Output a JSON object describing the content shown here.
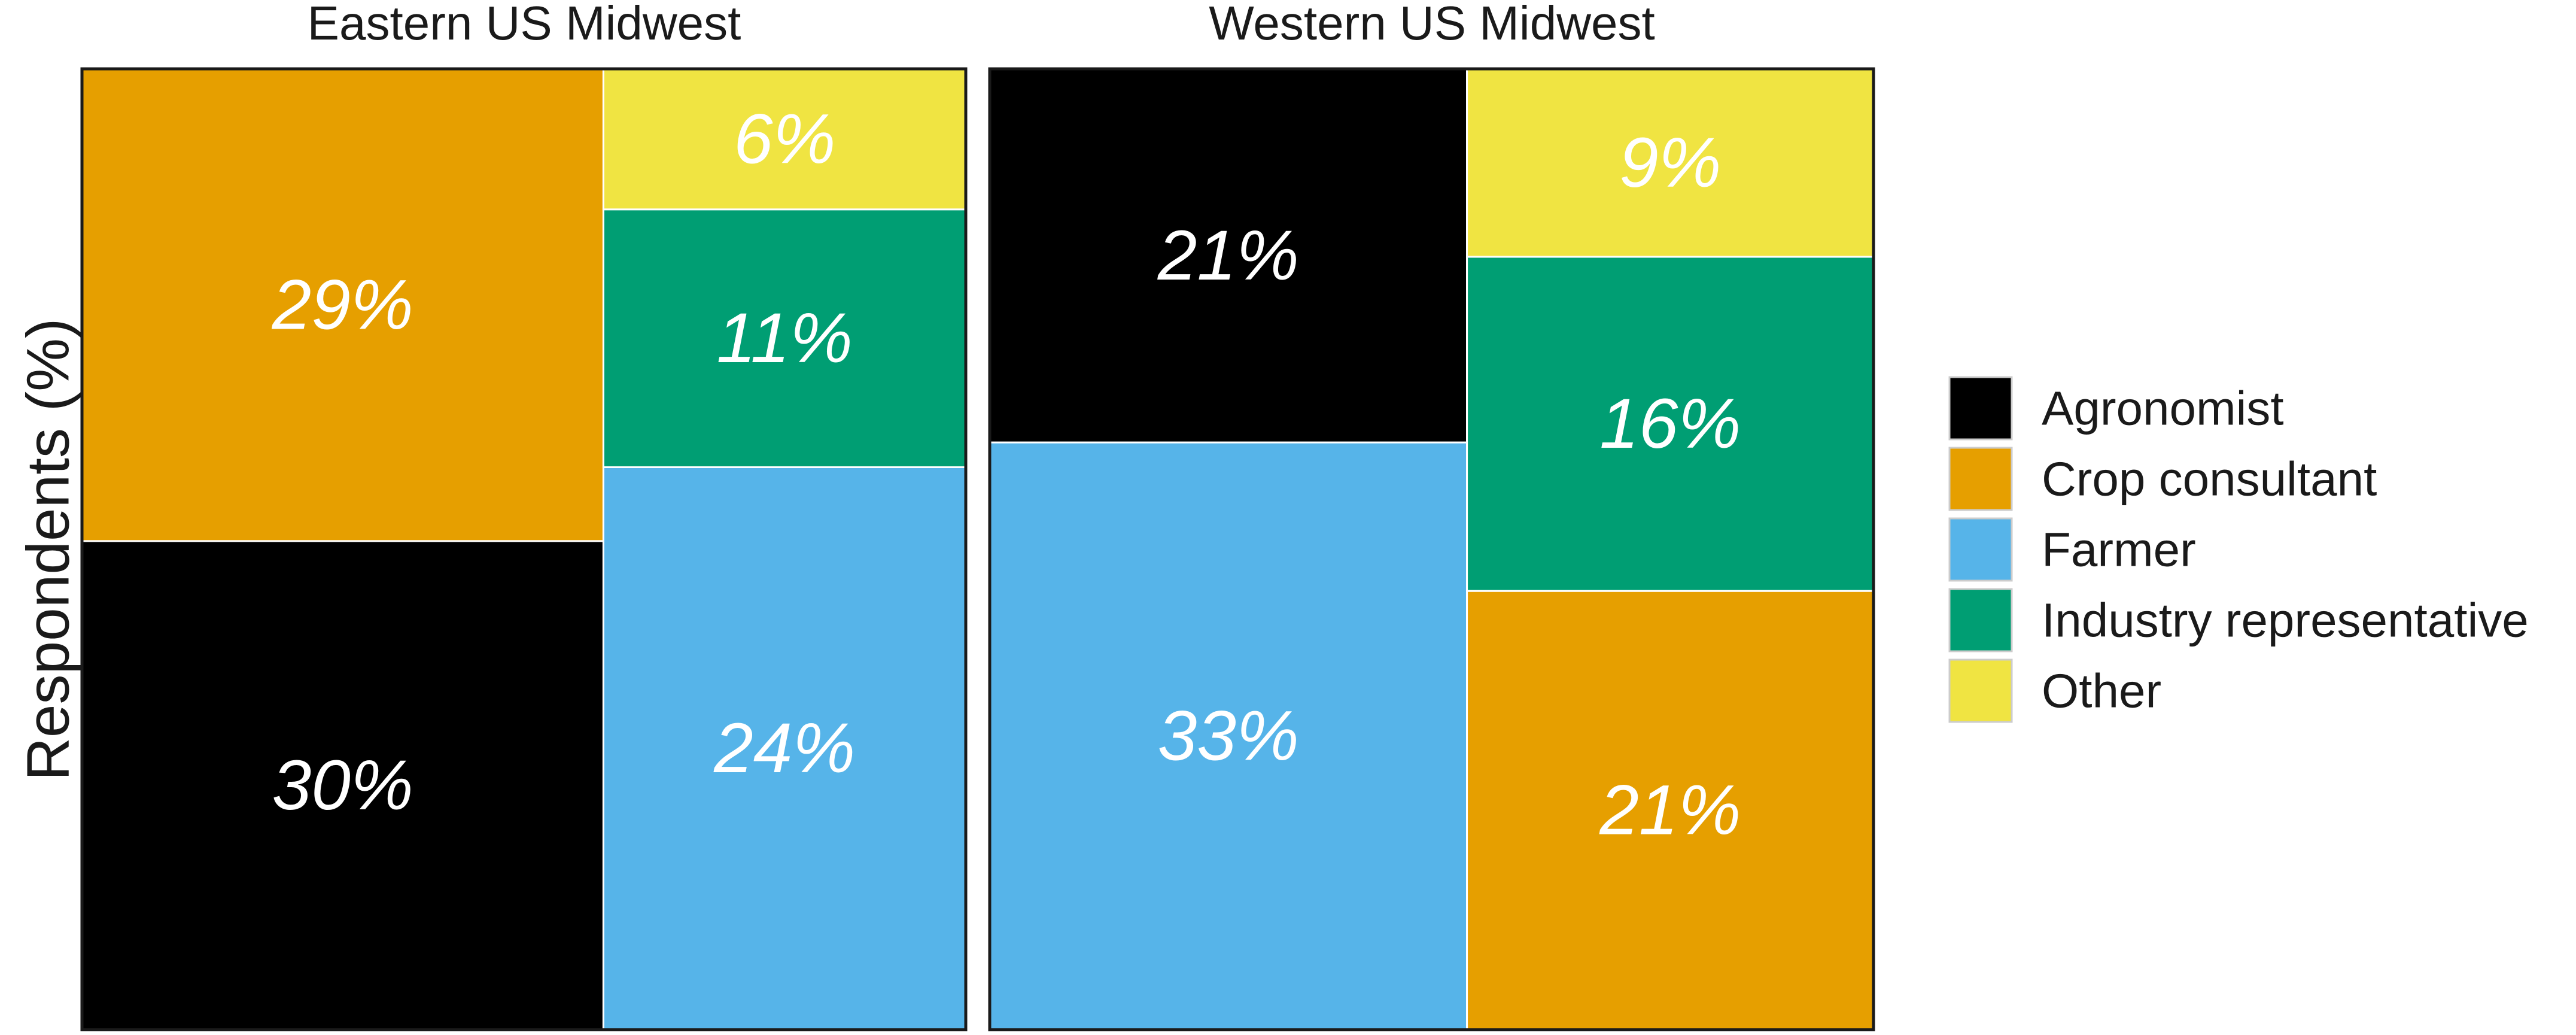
{
  "chart_data": {
    "type": "treemap",
    "ylabel": "Respondents (%)",
    "legend_position": "right",
    "legend": [
      {
        "name": "Agronomist",
        "color": "#000000"
      },
      {
        "name": "Crop consultant",
        "color": "#E69F00"
      },
      {
        "name": "Farmer",
        "color": "#56B4E9"
      },
      {
        "name": "Industry representative",
        "color": "#009E73"
      },
      {
        "name": "Other",
        "color": "#F0E442"
      }
    ],
    "panels": [
      {
        "title": "Eastern US Midwest",
        "tiles": [
          {
            "category": "Crop consultant",
            "value": 29,
            "label": "29%"
          },
          {
            "category": "Agronomist",
            "value": 30,
            "label": "30%"
          },
          {
            "category": "Other",
            "value": 6,
            "label": "6%"
          },
          {
            "category": "Industry representative",
            "value": 11,
            "label": "11%"
          },
          {
            "category": "Farmer",
            "value": 24,
            "label": "24%"
          }
        ]
      },
      {
        "title": "Western US Midwest",
        "tiles": [
          {
            "category": "Agronomist",
            "value": 21,
            "label": "21%"
          },
          {
            "category": "Farmer",
            "value": 33,
            "label": "33%"
          },
          {
            "category": "Other",
            "value": 9,
            "label": "9%"
          },
          {
            "category": "Industry representative",
            "value": 16,
            "label": "16%"
          },
          {
            "category": "Crop consultant",
            "value": 21,
            "label": "21%"
          }
        ]
      }
    ]
  }
}
